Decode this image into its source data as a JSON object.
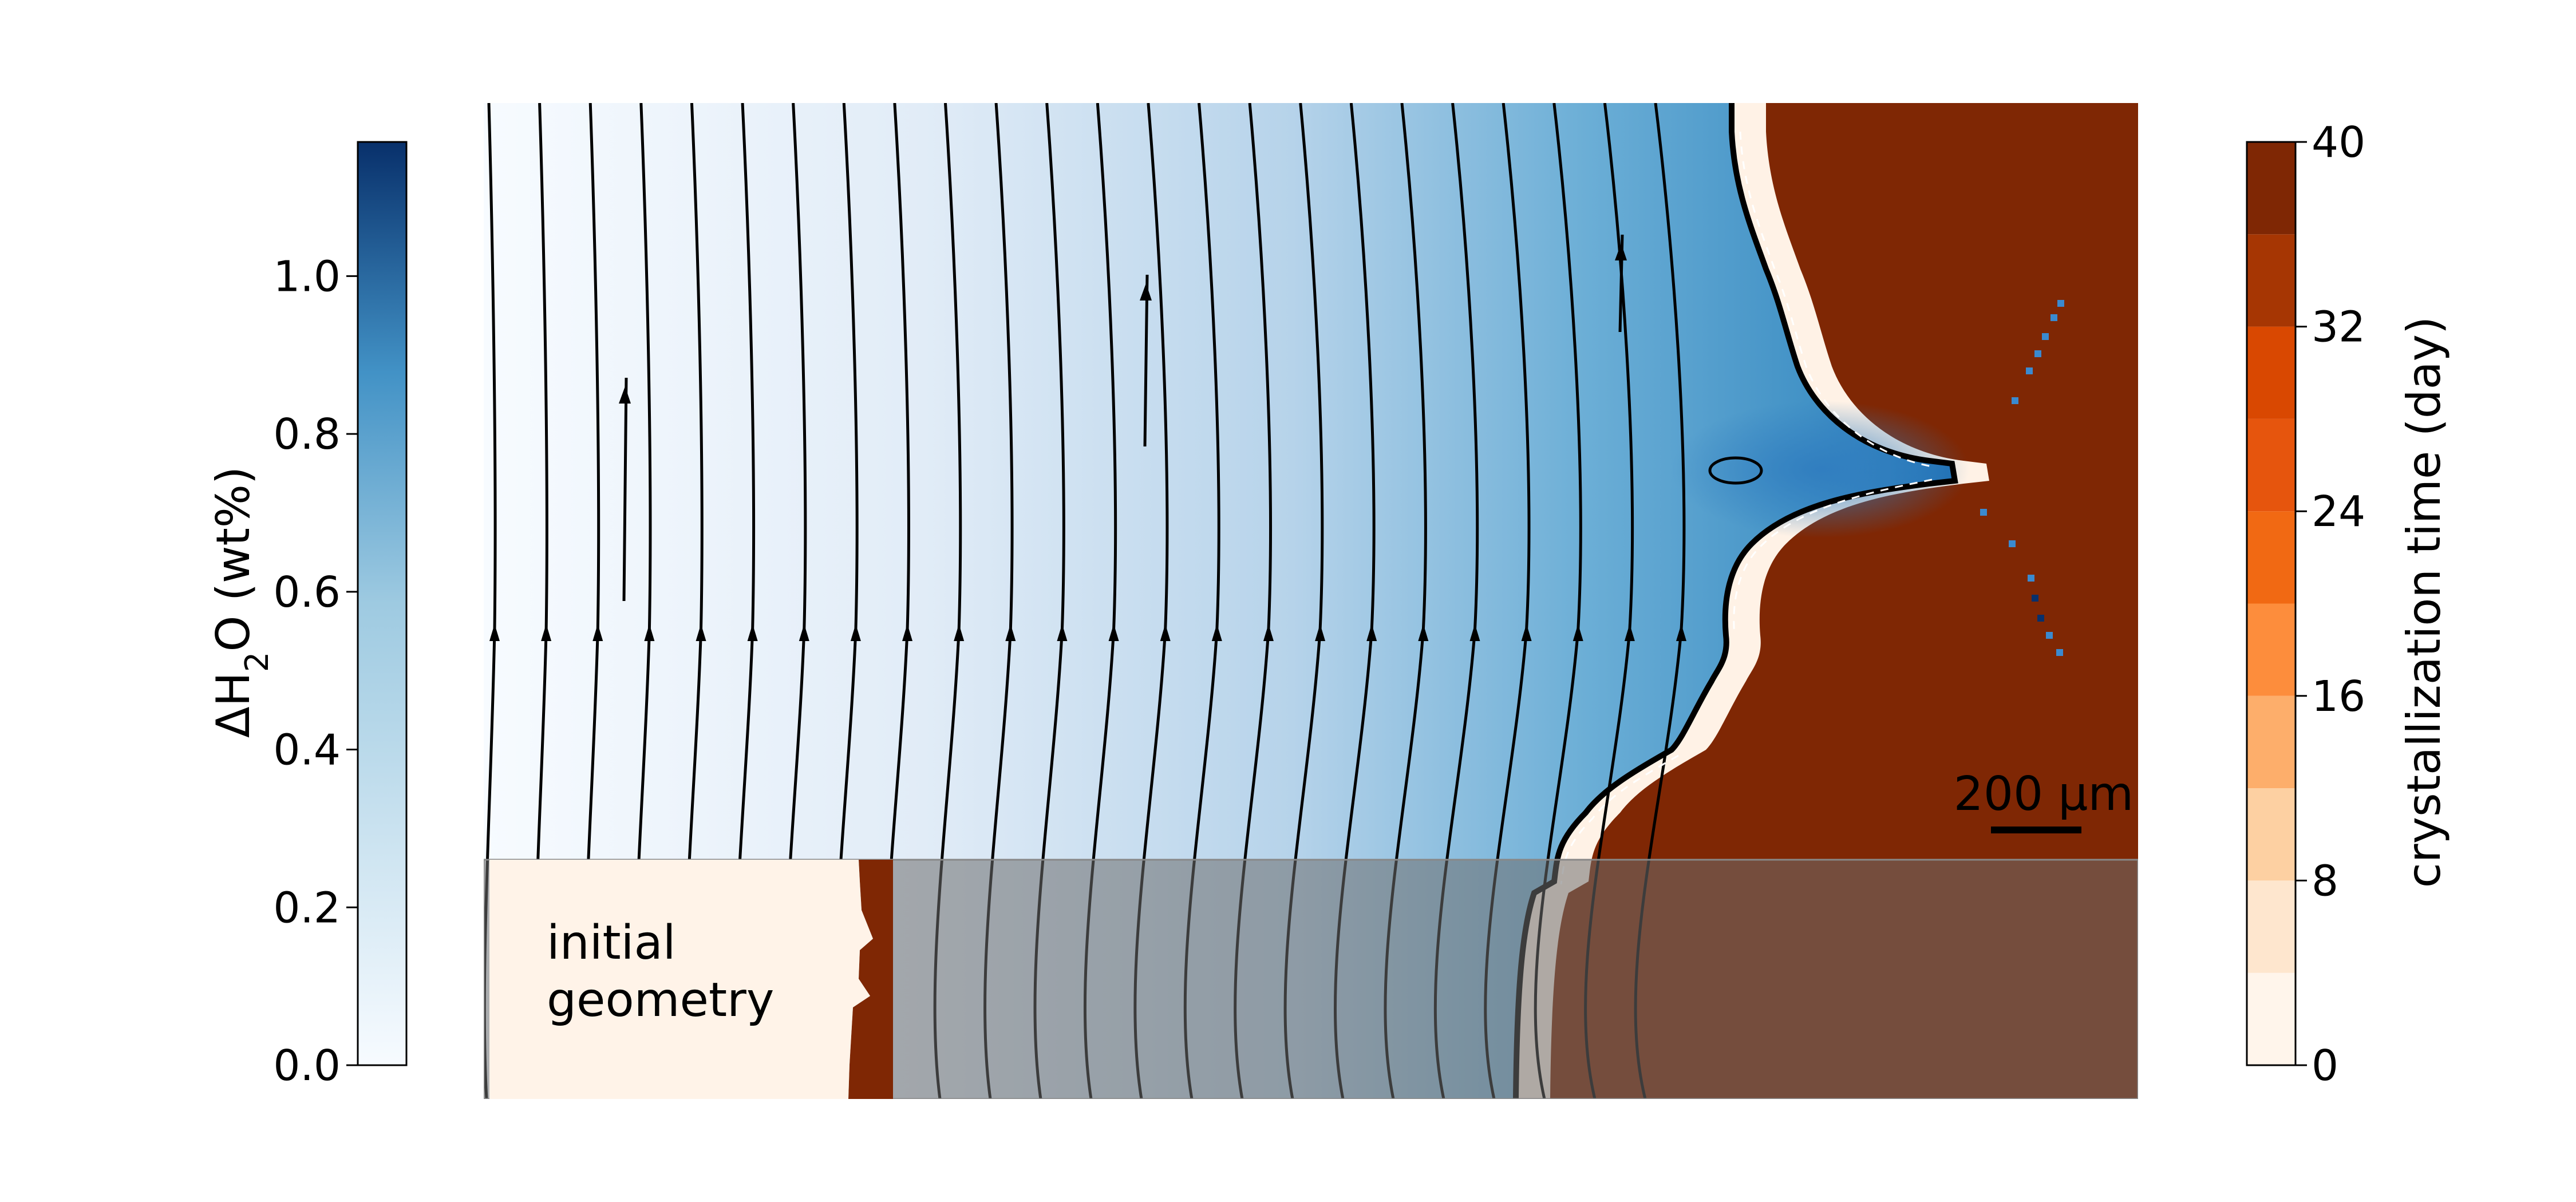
{
  "chart_data": {
    "type": "heatmap",
    "title": "",
    "fields": [
      {
        "name": "ΔH₂O",
        "colormap": "Blues",
        "colorbar": {
          "label": "ΔH₂O (wt%)",
          "label_parts": {
            "pre": "ΔH",
            "sub": "2",
            "post": "O (wt%)"
          },
          "range": [
            0,
            1.17
          ],
          "ticks": [
            0.0,
            0.2,
            0.4,
            0.6,
            0.8,
            1.0
          ],
          "tick_labels": [
            "0.0",
            "0.2",
            "0.4",
            "0.6",
            "0.8",
            "1.0"
          ],
          "side": "left"
        }
      },
      {
        "name": "crystallization time",
        "colormap": "Oranges (discrete, 10 levels)",
        "colorbar": {
          "label": "crystallization time (day)",
          "range": [
            0,
            40
          ],
          "ticks": [
            0,
            8,
            16,
            24,
            32,
            40
          ],
          "tick_labels": [
            "0",
            "8",
            "16",
            "24",
            "32",
            "40"
          ],
          "levels": 10,
          "side": "right"
        }
      }
    ],
    "streamlines": true,
    "annotations": {
      "inset_label_line1": "initial",
      "inset_label_line2": "geometry",
      "scale_bar_label": "200 μm",
      "scale_bar_length_um": 200
    },
    "colors": {
      "blue_dark": "#08306b",
      "blue_mid": "#4292c6",
      "blue_light": "#f7fbff",
      "orange_dark": "#7f2704",
      "orange_mid": "#f16913",
      "orange_light": "#fff5eb",
      "overlay": "#6a6a6a",
      "crystal_brown": "#7f2704"
    }
  }
}
